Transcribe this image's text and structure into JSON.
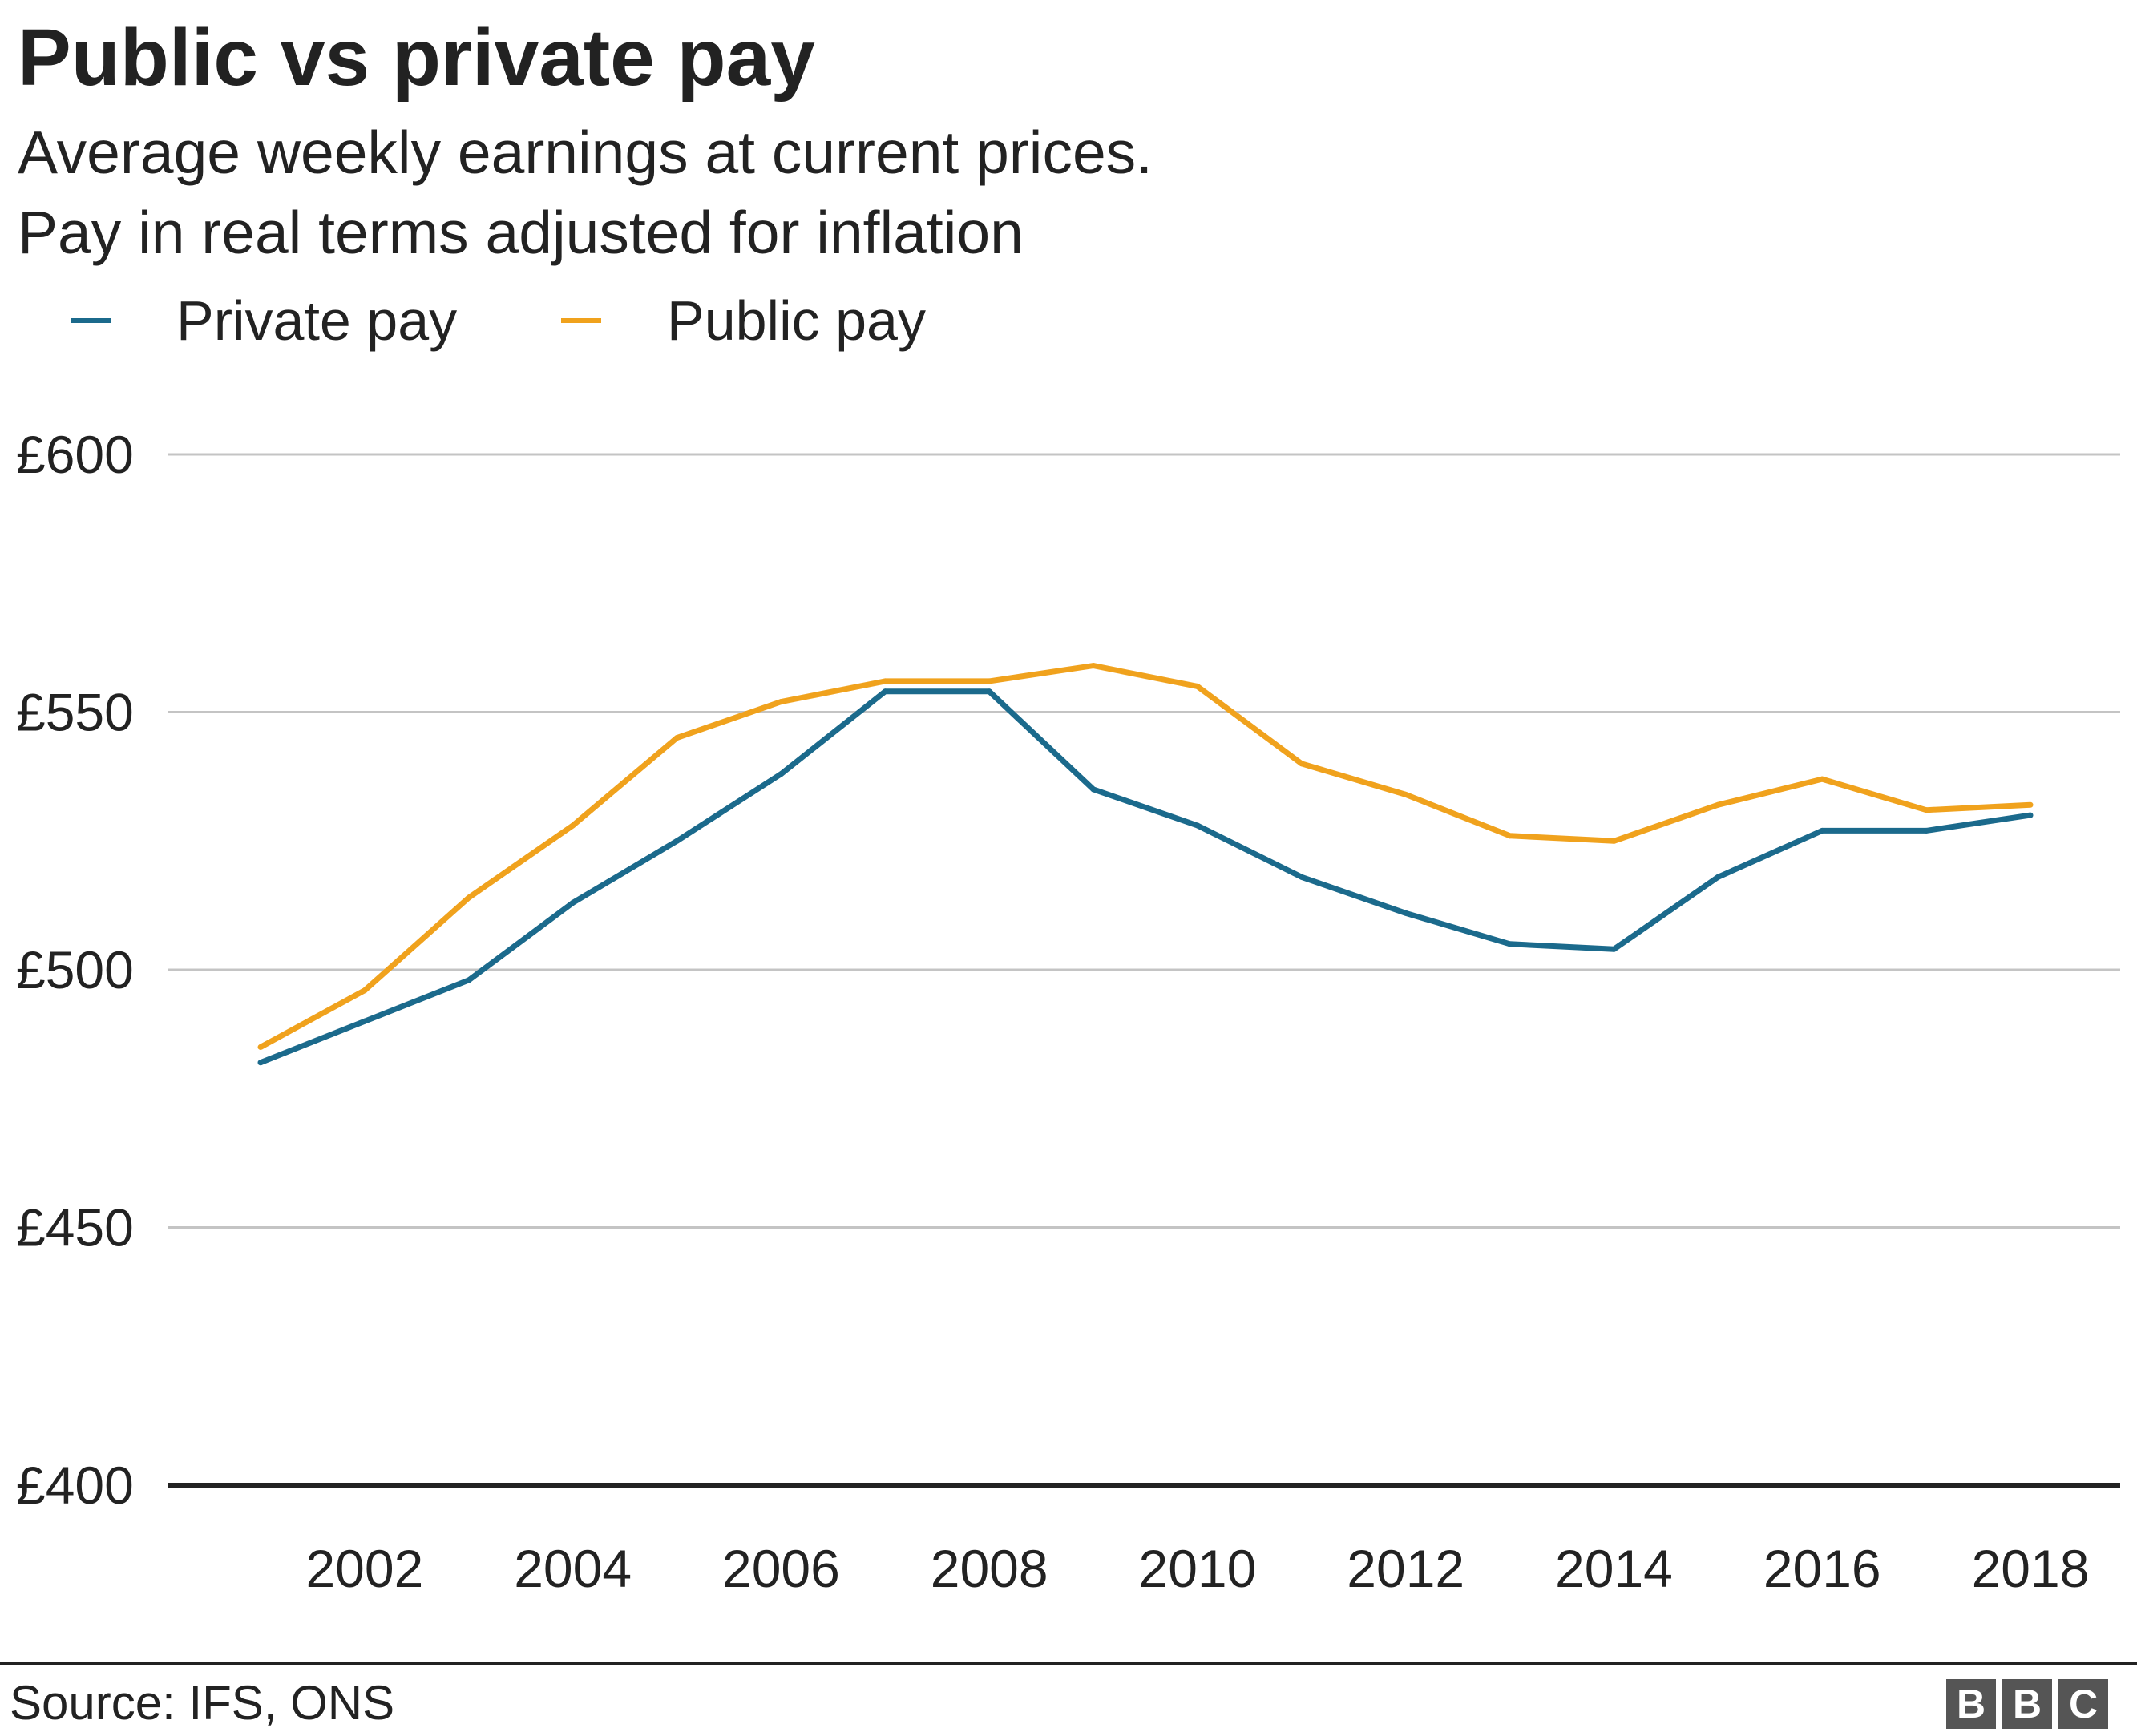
{
  "header": {
    "title": "Public vs private pay",
    "subtitle_line1": "Average weekly earnings at current prices.",
    "subtitle_line2": "Pay in real terms adjusted for inflation"
  },
  "legend": [
    {
      "label": "Private pay",
      "color": "#1b6a8c"
    },
    {
      "label": "Public pay",
      "color": "#f0a21d"
    }
  ],
  "chart_data": {
    "type": "line",
    "title": "Public vs private pay",
    "subtitle": "Average weekly earnings at current prices. Pay in real terms adjusted for inflation",
    "xlabel": "",
    "ylabel": "",
    "x": [
      2001,
      2002,
      2003,
      2004,
      2005,
      2006,
      2007,
      2008,
      2009,
      2010,
      2011,
      2012,
      2013,
      2014,
      2015,
      2016,
      2017,
      2018
    ],
    "series": [
      {
        "name": "Private pay",
        "color": "#1b6a8c",
        "values": [
          482,
          490,
          498,
          513,
          525,
          538,
          554,
          554,
          535,
          528,
          518,
          511,
          505,
          504,
          518,
          527,
          527,
          530
        ]
      },
      {
        "name": "Public pay",
        "color": "#f0a21d",
        "values": [
          485,
          496,
          514,
          528,
          545,
          552,
          556,
          556,
          559,
          555,
          540,
          534,
          526,
          525,
          532,
          537,
          531,
          532
        ]
      }
    ],
    "ylim": [
      400,
      600
    ],
    "xlim": [
      2001,
      2018
    ],
    "y_ticks": [
      400,
      450,
      500,
      550,
      600
    ],
    "y_tick_labels": [
      "£400",
      "£450",
      "£500",
      "£550",
      "£600"
    ],
    "x_ticks": [
      2002,
      2004,
      2006,
      2008,
      2010,
      2012,
      2014,
      2016,
      2018
    ],
    "x_tick_labels": [
      "2002",
      "2004",
      "2006",
      "2008",
      "2010",
      "2012",
      "2014",
      "2016",
      "2018"
    ],
    "grid": true,
    "legend_position": "top-left"
  },
  "footer": {
    "source": "Source: IFS, ONS",
    "logo_letters": [
      "B",
      "B",
      "C"
    ],
    "logo_color": "#555555"
  }
}
